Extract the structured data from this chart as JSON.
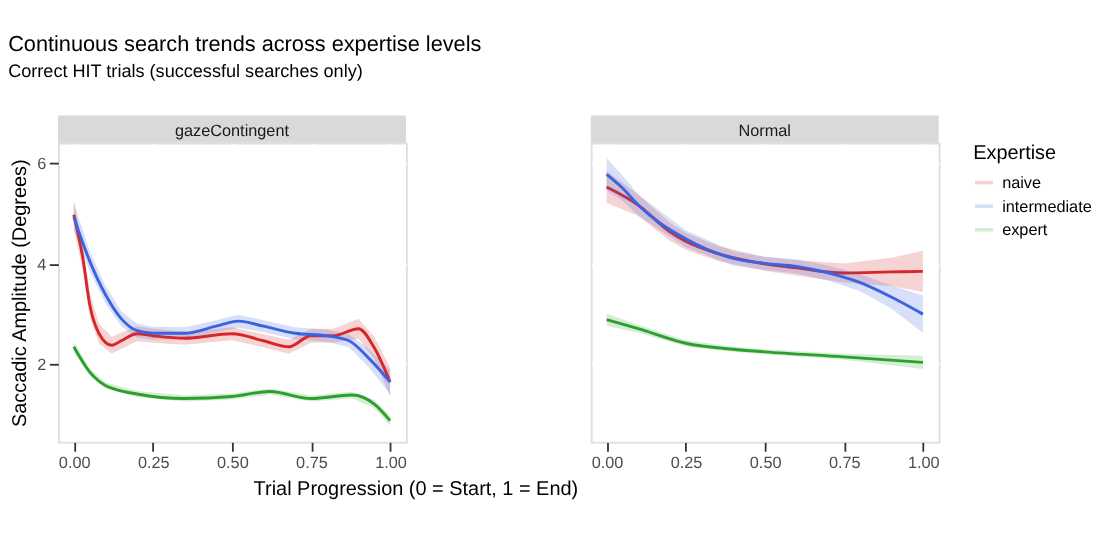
{
  "chart_data": [
    {
      "type": "line",
      "title": "Continuous search trends across expertise levels",
      "subtitle": "Correct HIT trials (successful searches only)",
      "annotations": [
        "gazeContingent"
      ],
      "xlabel": "Trial Progression (0 = Start, 1 = End)",
      "ylabel": "Saccadic Amplitude (Degrees)",
      "legend_title": "Expertise",
      "legend": "right",
      "grid": true,
      "xlim": [
        -0.05,
        1.05
      ],
      "ylim": [
        0.45,
        6.4
      ],
      "xticks": [
        {
          "value": 0,
          "label": "0.00"
        },
        {
          "value": 0.25,
          "label": "0.25"
        },
        {
          "value": 0.5,
          "label": "0.50"
        },
        {
          "value": 0.75,
          "label": "0.75"
        },
        {
          "value": 1,
          "label": "1.00"
        }
      ],
      "yticks": [
        2,
        4,
        6
      ],
      "series": [
        {
          "name": "naive",
          "color": "#d7262a",
          "x": [
            0,
            0.03,
            0.05,
            0.08,
            0.12,
            0.15,
            0.2,
            0.25,
            0.35,
            0.5,
            0.6,
            0.68,
            0.75,
            0.82,
            0.9,
            0.95,
            1.0
          ],
          "values": [
            4.97,
            4.05,
            3.19,
            2.6,
            2.37,
            2.46,
            2.6,
            2.56,
            2.51,
            2.6,
            2.46,
            2.34,
            2.56,
            2.56,
            2.7,
            2.32,
            1.64
          ],
          "lower": [
            4.7,
            3.8,
            2.95,
            2.4,
            2.2,
            2.3,
            2.45,
            2.42,
            2.38,
            2.47,
            2.33,
            2.2,
            2.42,
            2.42,
            2.5,
            2.1,
            1.35
          ],
          "upper": [
            5.25,
            4.3,
            3.43,
            2.8,
            2.54,
            2.62,
            2.75,
            2.7,
            2.64,
            2.73,
            2.59,
            2.48,
            2.7,
            2.7,
            2.9,
            2.54,
            1.93
          ]
        },
        {
          "name": "intermediate",
          "color": "#3a63e0",
          "x": [
            0,
            0.05,
            0.1,
            0.15,
            0.2,
            0.25,
            0.35,
            0.45,
            0.52,
            0.6,
            0.7,
            0.8,
            0.87,
            0.93,
            1.0
          ],
          "values": [
            4.92,
            4.05,
            3.38,
            2.9,
            2.66,
            2.61,
            2.61,
            2.75,
            2.85,
            2.75,
            2.61,
            2.56,
            2.46,
            2.13,
            1.64
          ],
          "lower": [
            4.65,
            3.85,
            3.2,
            2.75,
            2.52,
            2.48,
            2.49,
            2.63,
            2.72,
            2.63,
            2.49,
            2.44,
            2.33,
            1.95,
            1.4
          ],
          "upper": [
            5.2,
            4.25,
            3.56,
            3.05,
            2.8,
            2.74,
            2.73,
            2.87,
            2.98,
            2.87,
            2.73,
            2.68,
            2.59,
            2.31,
            1.88
          ]
        },
        {
          "name": "expert",
          "color": "#2ca02c",
          "x": [
            0,
            0.05,
            0.1,
            0.2,
            0.35,
            0.5,
            0.62,
            0.75,
            0.88,
            0.95,
            1.0
          ],
          "values": [
            2.34,
            1.84,
            1.57,
            1.4,
            1.31,
            1.35,
            1.45,
            1.31,
            1.38,
            1.2,
            0.87
          ],
          "lower": [
            2.24,
            1.77,
            1.51,
            1.34,
            1.25,
            1.29,
            1.39,
            1.25,
            1.31,
            1.12,
            0.77
          ],
          "upper": [
            2.44,
            1.91,
            1.63,
            1.46,
            1.37,
            1.41,
            1.51,
            1.37,
            1.45,
            1.28,
            0.97
          ]
        }
      ]
    },
    {
      "type": "line",
      "annotations": [
        "Normal"
      ],
      "grid": true,
      "tick_labels": "x",
      "xlim": [
        -0.05,
        1.05
      ],
      "ylim": [
        0.45,
        6.4
      ],
      "xticks": [
        {
          "value": 0,
          "label": "0.00"
        },
        {
          "value": 0.25,
          "label": "0.25"
        },
        {
          "value": 0.5,
          "label": "0.50"
        },
        {
          "value": 0.75,
          "label": "0.75"
        },
        {
          "value": 1,
          "label": "1.00"
        }
      ],
      "yticks": [
        2,
        4,
        6
      ],
      "series": [
        {
          "color": "#d7262a",
          "x": [
            0,
            0.1,
            0.2,
            0.25,
            0.35,
            0.5,
            0.6,
            0.75,
            0.9,
            1.0
          ],
          "values": [
            5.52,
            5.16,
            4.63,
            4.44,
            4.2,
            3.99,
            3.91,
            3.81,
            3.83,
            3.84
          ],
          "lower": [
            5.2,
            4.95,
            4.45,
            4.27,
            4.05,
            3.85,
            3.76,
            3.62,
            3.55,
            3.43
          ],
          "upper": [
            5.84,
            5.37,
            4.81,
            4.61,
            4.35,
            4.13,
            4.06,
            4.0,
            4.11,
            4.25
          ]
        },
        {
          "color": "#3a63e0",
          "x": [
            0,
            0.05,
            0.1,
            0.25,
            0.4,
            0.5,
            0.6,
            0.7,
            0.8,
            0.9,
            1.0
          ],
          "values": [
            5.77,
            5.5,
            5.16,
            4.49,
            4.1,
            4.0,
            3.94,
            3.81,
            3.62,
            3.33,
            2.99
          ],
          "lower": [
            5.45,
            5.25,
            4.95,
            4.32,
            3.96,
            3.87,
            3.8,
            3.66,
            3.45,
            3.1,
            2.62
          ],
          "upper": [
            6.09,
            5.75,
            5.37,
            4.66,
            4.24,
            4.13,
            4.08,
            3.96,
            3.79,
            3.56,
            3.36
          ]
        },
        {
          "color": "#2ca02c",
          "x": [
            0,
            0.1,
            0.25,
            0.4,
            0.5,
            0.75,
            1.0
          ],
          "values": [
            2.88,
            2.7,
            2.41,
            2.29,
            2.24,
            2.14,
            2.03
          ],
          "lower": [
            2.76,
            2.62,
            2.35,
            2.24,
            2.19,
            2.08,
            1.9
          ],
          "upper": [
            3.0,
            2.78,
            2.47,
            2.34,
            2.29,
            2.2,
            2.16
          ]
        }
      ]
    }
  ]
}
